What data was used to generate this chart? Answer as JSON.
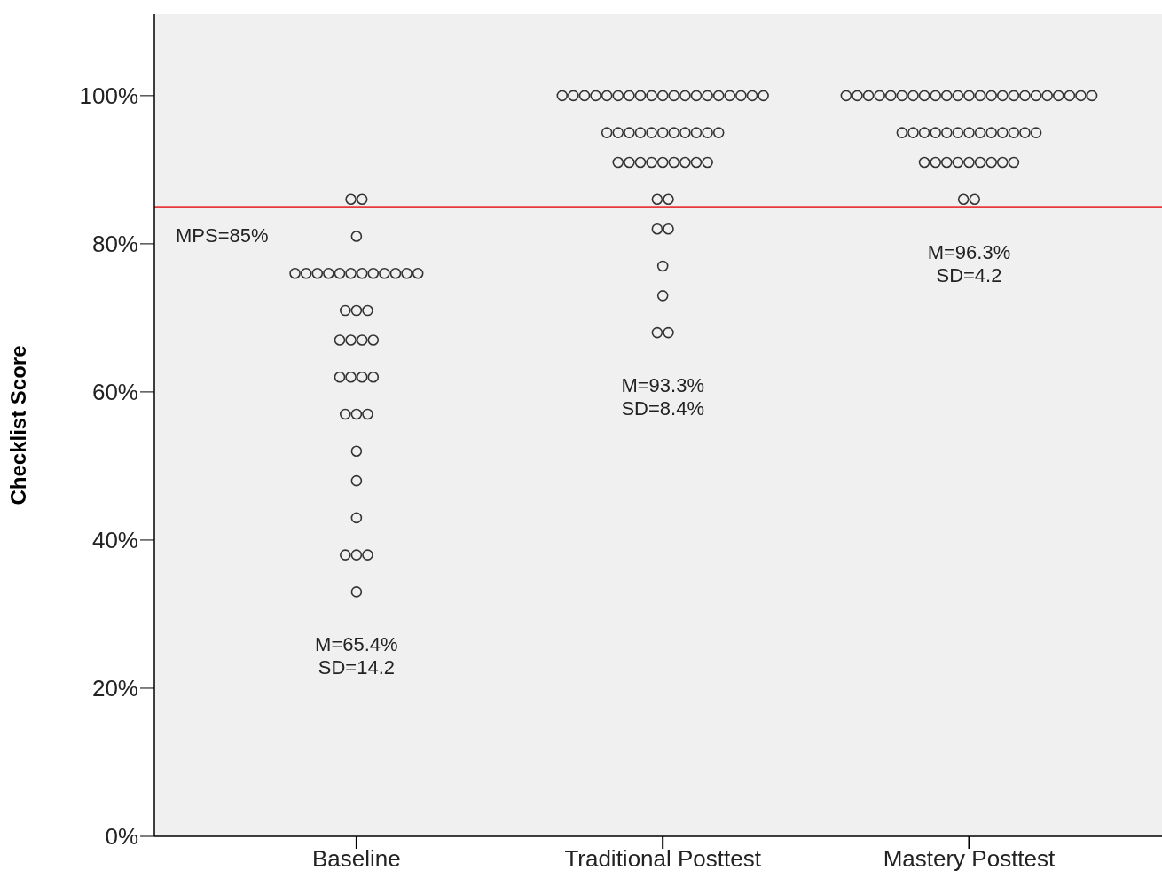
{
  "chart_data": {
    "type": "scatter",
    "categories": [
      "Baseline",
      "Traditional Posttest",
      "Mastery Posttest"
    ],
    "ylabel": "Checklist Score",
    "ylim": [
      0,
      111
    ],
    "yticks": [
      {
        "value": 0,
        "label": "0%"
      },
      {
        "value": 20,
        "label": "20%"
      },
      {
        "value": 40,
        "label": "40%"
      },
      {
        "value": 60,
        "label": "60%"
      },
      {
        "value": 80,
        "label": "80%"
      },
      {
        "value": 100,
        "label": "100%"
      }
    ],
    "grid": false,
    "marker": "circle",
    "series": [
      {
        "color": "#333333",
        "x": [
          "Baseline",
          "Baseline",
          "Baseline",
          "Baseline",
          "Baseline",
          "Baseline",
          "Baseline",
          "Baseline",
          "Baseline",
          "Baseline",
          "Baseline",
          "Baseline",
          "Baseline",
          "Baseline",
          "Baseline",
          "Baseline",
          "Baseline",
          "Baseline",
          "Baseline",
          "Baseline",
          "Baseline",
          "Baseline",
          "Baseline",
          "Baseline",
          "Baseline",
          "Baseline",
          "Baseline",
          "Baseline",
          "Baseline",
          "Baseline",
          "Baseline",
          "Baseline",
          "Baseline",
          "Baseline",
          "Baseline",
          "Baseline",
          "Traditional Posttest",
          "Traditional Posttest",
          "Traditional Posttest",
          "Traditional Posttest",
          "Traditional Posttest",
          "Traditional Posttest",
          "Traditional Posttest",
          "Traditional Posttest",
          "Traditional Posttest",
          "Traditional Posttest",
          "Traditional Posttest",
          "Traditional Posttest",
          "Traditional Posttest",
          "Traditional Posttest",
          "Traditional Posttest",
          "Traditional Posttest",
          "Traditional Posttest",
          "Traditional Posttest",
          "Traditional Posttest",
          "Traditional Posttest",
          "Traditional Posttest",
          "Traditional Posttest",
          "Traditional Posttest",
          "Traditional Posttest",
          "Traditional Posttest",
          "Traditional Posttest",
          "Traditional Posttest",
          "Traditional Posttest",
          "Traditional Posttest",
          "Traditional Posttest",
          "Traditional Posttest",
          "Traditional Posttest",
          "Traditional Posttest",
          "Traditional Posttest",
          "Traditional Posttest",
          "Traditional Posttest",
          "Traditional Posttest",
          "Traditional Posttest",
          "Traditional Posttest",
          "Traditional Posttest",
          "Traditional Posttest",
          "Traditional Posttest",
          "Traditional Posttest",
          "Traditional Posttest",
          "Traditional Posttest",
          "Traditional Posttest",
          "Traditional Posttest",
          "Mastery Posttest",
          "Mastery Posttest",
          "Mastery Posttest",
          "Mastery Posttest",
          "Mastery Posttest",
          "Mastery Posttest",
          "Mastery Posttest",
          "Mastery Posttest",
          "Mastery Posttest",
          "Mastery Posttest",
          "Mastery Posttest",
          "Mastery Posttest",
          "Mastery Posttest",
          "Mastery Posttest",
          "Mastery Posttest",
          "Mastery Posttest",
          "Mastery Posttest",
          "Mastery Posttest",
          "Mastery Posttest",
          "Mastery Posttest",
          "Mastery Posttest",
          "Mastery Posttest",
          "Mastery Posttest",
          "Mastery Posttest",
          "Mastery Posttest",
          "Mastery Posttest",
          "Mastery Posttest",
          "Mastery Posttest",
          "Mastery Posttest",
          "Mastery Posttest",
          "Mastery Posttest",
          "Mastery Posttest",
          "Mastery Posttest",
          "Mastery Posttest",
          "Mastery Posttest",
          "Mastery Posttest",
          "Mastery Posttest",
          "Mastery Posttest",
          "Mastery Posttest",
          "Mastery Posttest",
          "Mastery Posttest",
          "Mastery Posttest",
          "Mastery Posttest",
          "Mastery Posttest",
          "Mastery Posttest",
          "Mastery Posttest",
          "Mastery Posttest"
        ],
        "values": [
          86,
          86,
          81,
          76,
          76,
          76,
          76,
          76,
          76,
          76,
          76,
          76,
          76,
          76,
          76,
          71,
          71,
          71,
          67,
          67,
          67,
          67,
          62,
          62,
          62,
          62,
          57,
          57,
          57,
          52,
          48,
          43,
          38,
          38,
          38,
          33,
          100,
          100,
          100,
          100,
          100,
          100,
          100,
          100,
          100,
          100,
          100,
          100,
          100,
          100,
          100,
          100,
          100,
          100,
          100,
          95,
          95,
          95,
          95,
          95,
          95,
          95,
          95,
          95,
          95,
          95,
          91,
          91,
          91,
          91,
          91,
          91,
          91,
          91,
          91,
          86,
          86,
          82,
          82,
          77,
          73,
          68,
          68,
          100,
          100,
          100,
          100,
          100,
          100,
          100,
          100,
          100,
          100,
          100,
          100,
          100,
          100,
          100,
          100,
          100,
          100,
          100,
          100,
          100,
          100,
          100,
          95,
          95,
          95,
          95,
          95,
          95,
          95,
          95,
          95,
          95,
          95,
          95,
          95,
          91,
          91,
          91,
          91,
          91,
          91,
          91,
          91,
          91,
          86,
          86
        ]
      }
    ],
    "ref_lines": [
      {
        "axis": "y",
        "value": 85,
        "label": "MPS=85%",
        "color": "#e8393f"
      }
    ],
    "annotations": [
      "M=65.4%\nSD=14.2",
      "M=93.3%\nSD=8.4%",
      "M=96.3%\nSD=4.2"
    ]
  }
}
